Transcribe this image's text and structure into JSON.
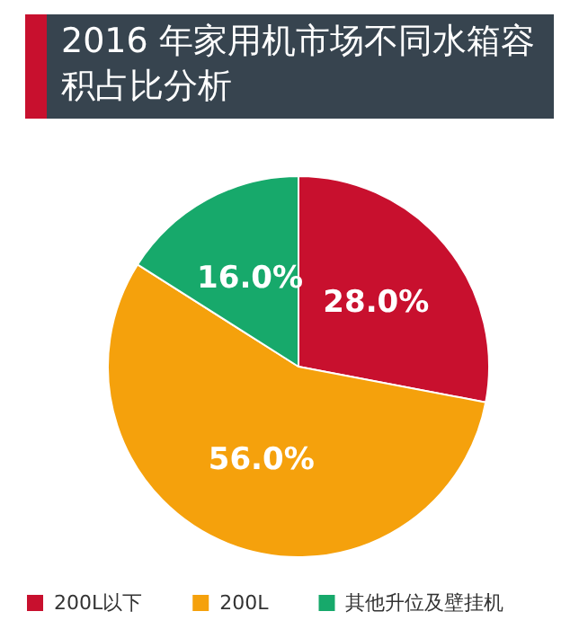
{
  "chart_data": {
    "type": "pie",
    "title": "2016 年家用机市场不同水箱容积占比分析",
    "categories": [
      "200L以下",
      "200L",
      "其他升位及壁挂机"
    ],
    "values": [
      28.0,
      56.0,
      16.0
    ],
    "colors": [
      "#c8102e",
      "#f5a10c",
      "#17a96b"
    ],
    "value_labels": [
      "28.0%",
      "56.0%",
      "16.0%"
    ],
    "legend": "bottom"
  }
}
